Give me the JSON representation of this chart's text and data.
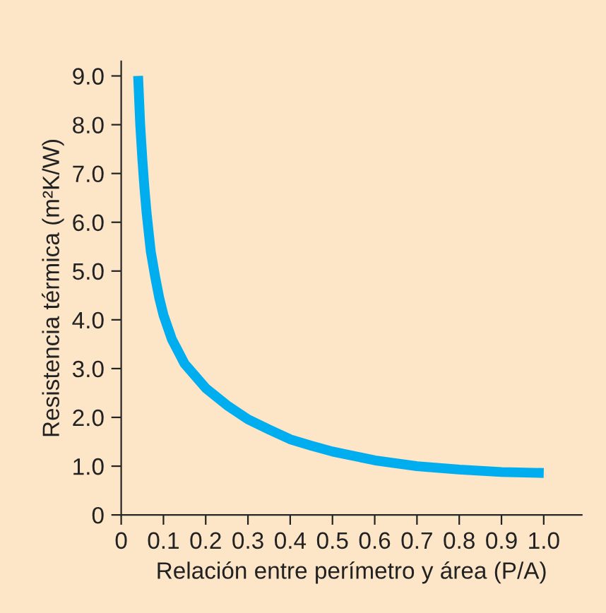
{
  "chart_data": {
    "type": "line",
    "xlabel": "Relación entre perímetro y área (P/A)",
    "ylabel": "Resistencia térmica (m²K/W)",
    "x": [
      0.04,
      0.045,
      0.05,
      0.055,
      0.06,
      0.07,
      0.08,
      0.09,
      0.1,
      0.12,
      0.15,
      0.2,
      0.25,
      0.3,
      0.35,
      0.4,
      0.45,
      0.5,
      0.6,
      0.7,
      0.8,
      0.9,
      1.0
    ],
    "series": [
      {
        "color": "#00aeef",
        "values": [
          9.0,
          8.0,
          7.3,
          6.7,
          6.2,
          5.4,
          4.9,
          4.45,
          4.1,
          3.6,
          3.1,
          2.6,
          2.25,
          1.96,
          1.75,
          1.55,
          1.42,
          1.3,
          1.12,
          1.0,
          0.93,
          0.88,
          0.86
        ]
      }
    ],
    "xlim": [
      0,
      1.09
    ],
    "ylim": [
      0,
      9.3
    ],
    "xticks": [
      0,
      0.1,
      0.2,
      0.3,
      0.4,
      0.5,
      0.6,
      0.7,
      0.8,
      0.9,
      {
        "value": 1.0,
        "label": "1.0"
      }
    ],
    "yticks": [
      0,
      {
        "value": 1,
        "label": "1.0"
      },
      {
        "value": 2,
        "label": "2.0"
      },
      {
        "value": 3,
        "label": "3.0"
      },
      {
        "value": 4,
        "label": "4.0"
      },
      {
        "value": 5,
        "label": "5.0"
      },
      {
        "value": 6,
        "label": "6.0"
      },
      {
        "value": 7,
        "label": "7.0"
      },
      {
        "value": 8,
        "label": "8.0"
      },
      {
        "value": 9,
        "label": "9.0"
      }
    ],
    "grid": false,
    "marker": "none",
    "line_style": "solid"
  }
}
